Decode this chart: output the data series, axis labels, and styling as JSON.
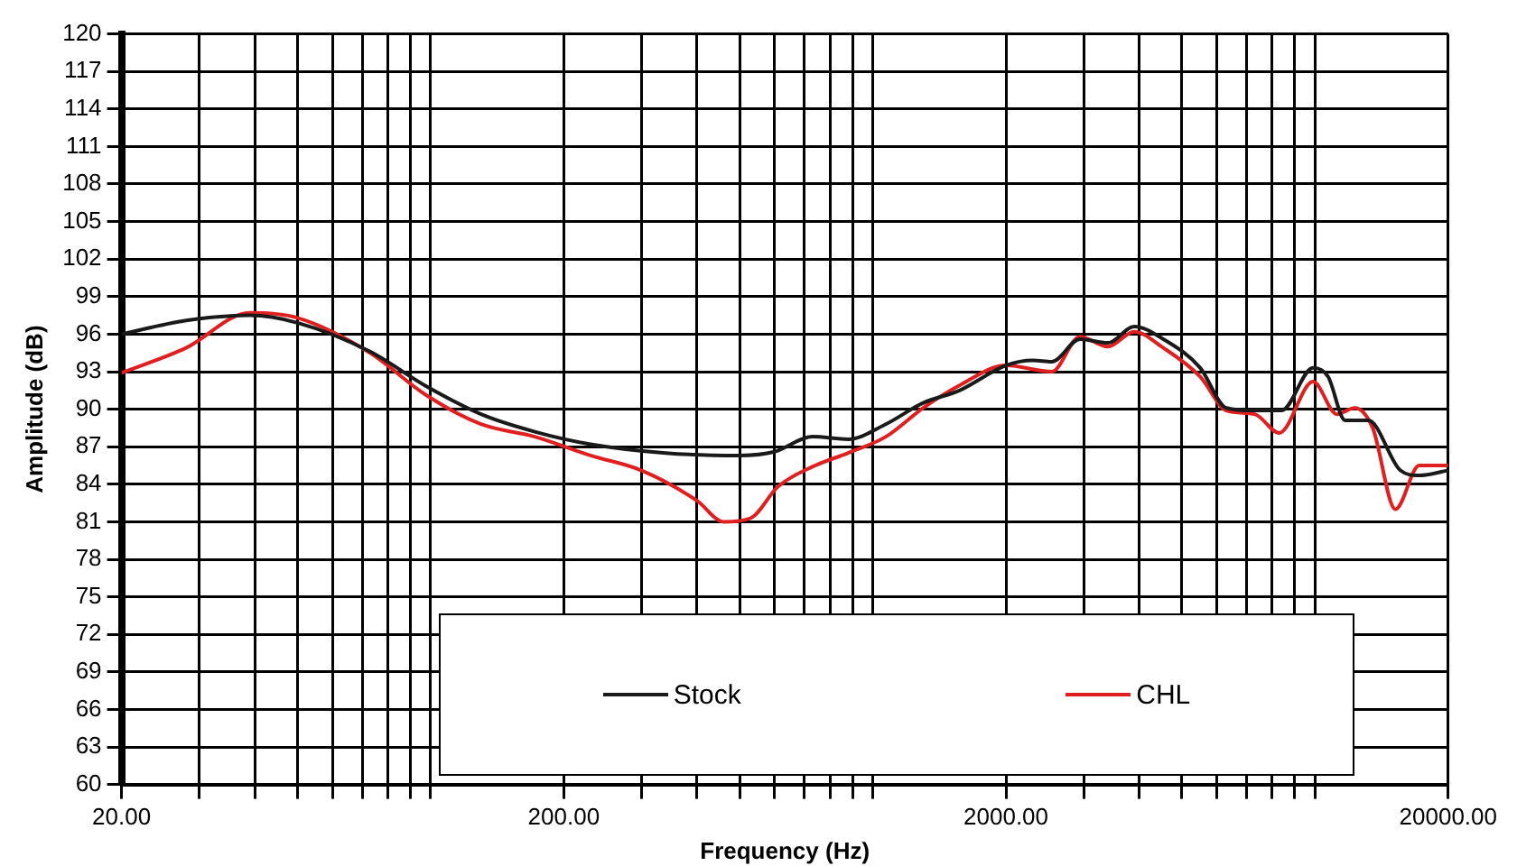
{
  "chart_data": {
    "type": "line",
    "xlabel": "Frequency (Hz)",
    "ylabel": "Amplitude (dB)",
    "log": "x",
    "xlim": [
      20,
      20000
    ],
    "xticks": [
      {
        "value": 20,
        "label": "20.00"
      },
      {
        "value": 30,
        "label": null
      },
      {
        "value": 40,
        "label": null
      },
      {
        "value": 50,
        "label": null
      },
      {
        "value": 60,
        "label": null
      },
      {
        "value": 70,
        "label": null
      },
      {
        "value": 80,
        "label": null
      },
      {
        "value": 90,
        "label": null
      },
      {
        "value": 100,
        "label": null
      },
      {
        "value": 200,
        "label": "200.00"
      },
      {
        "value": 300,
        "label": null
      },
      {
        "value": 400,
        "label": null
      },
      {
        "value": 500,
        "label": null
      },
      {
        "value": 600,
        "label": null
      },
      {
        "value": 700,
        "label": null
      },
      {
        "value": 800,
        "label": null
      },
      {
        "value": 900,
        "label": null
      },
      {
        "value": 1000,
        "label": null
      },
      {
        "value": 2000,
        "label": "2000.00"
      },
      {
        "value": 3000,
        "label": null
      },
      {
        "value": 4000,
        "label": null
      },
      {
        "value": 5000,
        "label": null
      },
      {
        "value": 6000,
        "label": null
      },
      {
        "value": 7000,
        "label": null
      },
      {
        "value": 8000,
        "label": null
      },
      {
        "value": 9000,
        "label": null
      },
      {
        "value": 10000,
        "label": null
      },
      {
        "value": 20000,
        "label": "20000.00"
      }
    ],
    "ylim": [
      60,
      120
    ],
    "yticks": [
      60,
      63,
      66,
      69,
      72,
      75,
      78,
      81,
      84,
      87,
      90,
      93,
      96,
      99,
      102,
      105,
      108,
      111,
      114,
      117,
      120
    ],
    "grid": true,
    "legend": "bottom",
    "marker": "none",
    "line_style": "solid",
    "series": [
      {
        "name": "Stock",
        "color": "#1a1a1a",
        "x": [
          20,
          28,
          39,
          50,
          73,
          97,
          130,
          172,
          230,
          340,
          500,
          600,
          730,
          880,
          1070,
          1300,
          1570,
          2000,
          2300,
          2540,
          2940,
          3400,
          3900,
          4540,
          5500,
          6300,
          7300,
          8400,
          9900,
          10700,
          11700,
          13200,
          15600,
          17200,
          20000
        ],
        "values": [
          96.0,
          97.1,
          97.5,
          96.9,
          94.6,
          91.9,
          89.6,
          88.2,
          87.2,
          86.5,
          86.3,
          86.6,
          87.8,
          87.6,
          88.8,
          90.5,
          91.5,
          93.5,
          93.9,
          93.8,
          95.6,
          95.3,
          96.6,
          95.6,
          93.3,
          90.1,
          89.9,
          89.9,
          93.3,
          92.6,
          89.1,
          89.1,
          85.1,
          84.7,
          85.1
        ]
      },
      {
        "name": "CHL",
        "color": "#e02020",
        "x": [
          20,
          28,
          39,
          50,
          73,
          97,
          130,
          172,
          230,
          300,
          400,
          460,
          530,
          610,
          730,
          880,
          1070,
          1300,
          1570,
          2000,
          2540,
          2940,
          3400,
          3900,
          4540,
          5500,
          6300,
          7300,
          8300,
          9900,
          11200,
          12300,
          13500,
          15200,
          17200,
          20000
        ],
        "values": [
          92.9,
          94.9,
          97.7,
          97.3,
          94.5,
          91.2,
          88.8,
          87.8,
          86.3,
          85.1,
          82.7,
          81.0,
          81.3,
          83.8,
          85.4,
          86.5,
          87.8,
          90.1,
          91.9,
          93.5,
          93.0,
          95.8,
          95.0,
          96.2,
          94.9,
          92.6,
          89.9,
          89.6,
          88.1,
          92.2,
          89.6,
          90.1,
          88.5,
          82.0,
          85.5,
          85.5
        ]
      }
    ]
  }
}
